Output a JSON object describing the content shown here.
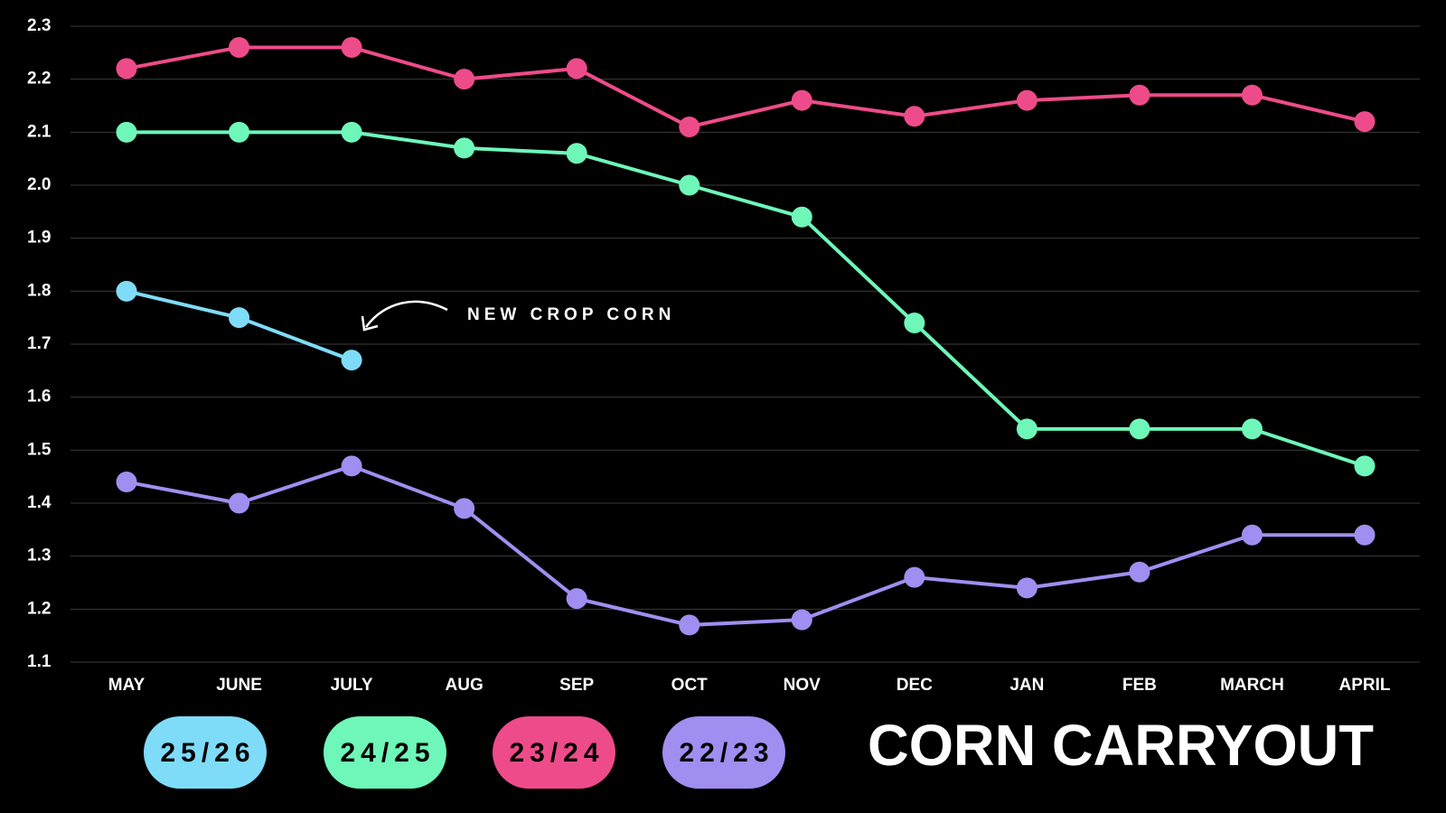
{
  "chart_data": {
    "type": "line",
    "title": "CORN CARRYOUT",
    "annotation": "NEW CROP CORN",
    "categories": [
      "MAY",
      "JUNE",
      "JULY",
      "AUG",
      "SEP",
      "OCT",
      "NOV",
      "DEC",
      "JAN",
      "FEB",
      "MARCH",
      "APRIL"
    ],
    "series": [
      {
        "name": "25/26",
        "color": "#7edcf8",
        "values": [
          1.8,
          1.75,
          1.67,
          null,
          null,
          null,
          null,
          null,
          null,
          null,
          null,
          null
        ]
      },
      {
        "name": "24/25",
        "color": "#6ef7b9",
        "values": [
          2.1,
          2.1,
          2.1,
          2.07,
          2.06,
          2.0,
          1.94,
          1.74,
          1.54,
          1.54,
          1.54,
          1.47
        ]
      },
      {
        "name": "23/24",
        "color": "#ee4b8a",
        "values": [
          2.22,
          2.26,
          2.26,
          2.2,
          2.22,
          2.11,
          2.16,
          2.13,
          2.16,
          2.17,
          2.17,
          2.12
        ]
      },
      {
        "name": "22/23",
        "color": "#a08ef0",
        "values": [
          1.44,
          1.4,
          1.47,
          1.39,
          1.22,
          1.17,
          1.18,
          1.26,
          1.24,
          1.27,
          1.34,
          1.34
        ]
      }
    ],
    "ylim": [
      1.1,
      2.3
    ],
    "yticks": [
      1.1,
      1.2,
      1.3,
      1.4,
      1.5,
      1.6,
      1.7,
      1.8,
      1.9,
      2.0,
      2.1,
      2.2,
      2.3
    ],
    "grid": true
  }
}
